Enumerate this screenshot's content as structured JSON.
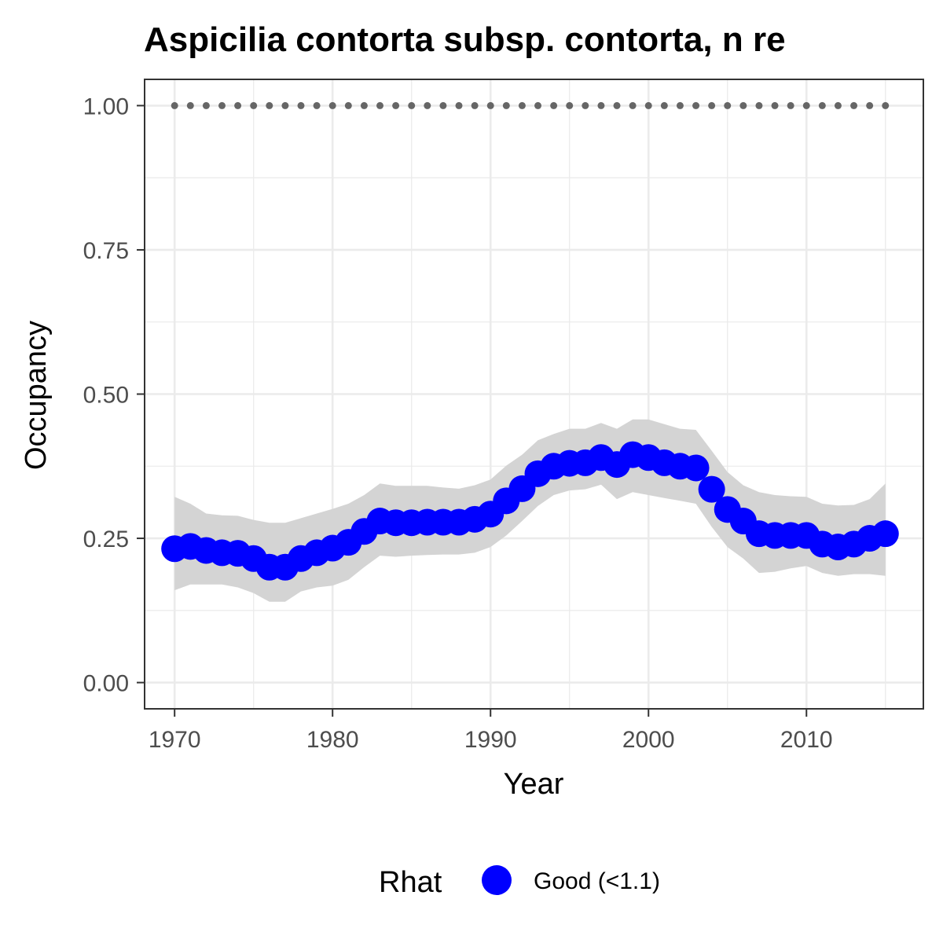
{
  "chart_data": {
    "type": "line",
    "title": "Aspicilia contorta subsp. contorta, n re",
    "xlabel": "Year",
    "ylabel": "Occupancy",
    "xlim": [
      1968.1,
      2017.4
    ],
    "ylim": [
      -0.0455,
      1.0455
    ],
    "x_ticks": [
      1970,
      1980,
      1990,
      2000,
      2010
    ],
    "x_tick_labels": [
      "1970",
      "1980",
      "1990",
      "2000",
      "2010"
    ],
    "y_ticks": [
      0,
      0.25,
      0.5,
      0.75,
      1
    ],
    "y_tick_labels": [
      "0.00",
      "0.25",
      "0.50",
      "0.75",
      "1.00"
    ],
    "grid": true,
    "legend": {
      "title": "Rhat",
      "position": "bottom",
      "entries": [
        {
          "label": "Good (<1.1)",
          "color": "#0000ff"
        }
      ]
    },
    "colors": {
      "points": "#0000ff",
      "ribbon": "#d4d4d4",
      "reference": "#666666"
    },
    "x": [
      1970,
      1971,
      1972,
      1973,
      1974,
      1975,
      1976,
      1977,
      1978,
      1979,
      1980,
      1981,
      1982,
      1983,
      1984,
      1985,
      1986,
      1987,
      1988,
      1989,
      1990,
      1991,
      1992,
      1993,
      1994,
      1995,
      1996,
      1997,
      1998,
      1999,
      2000,
      2001,
      2002,
      2003,
      2004,
      2005,
      2006,
      2007,
      2008,
      2009,
      2010,
      2011,
      2012,
      2013,
      2014,
      2015
    ],
    "series": [
      {
        "values": [
          0.232,
          0.236,
          0.229,
          0.225,
          0.224,
          0.215,
          0.2,
          0.2,
          0.215,
          0.225,
          0.233,
          0.243,
          0.262,
          0.28,
          0.277,
          0.277,
          0.278,
          0.278,
          0.278,
          0.283,
          0.292,
          0.315,
          0.336,
          0.362,
          0.375,
          0.38,
          0.381,
          0.39,
          0.378,
          0.395,
          0.39,
          0.381,
          0.375,
          0.372,
          0.335,
          0.3,
          0.28,
          0.258,
          0.255,
          0.255,
          0.255,
          0.24,
          0.235,
          0.24,
          0.25,
          0.258
        ],
        "lower": [
          0.16,
          0.17,
          0.17,
          0.17,
          0.165,
          0.155,
          0.14,
          0.14,
          0.158,
          0.165,
          0.168,
          0.178,
          0.2,
          0.22,
          0.218,
          0.22,
          0.221,
          0.222,
          0.222,
          0.225,
          0.235,
          0.255,
          0.28,
          0.306,
          0.325,
          0.333,
          0.335,
          0.343,
          0.318,
          0.33,
          0.325,
          0.32,
          0.315,
          0.31,
          0.27,
          0.235,
          0.215,
          0.19,
          0.192,
          0.198,
          0.202,
          0.19,
          0.185,
          0.188,
          0.188,
          0.185
        ]
      },
      {
        "values": [
          1,
          1,
          1,
          1,
          1,
          1,
          1,
          1,
          1,
          1,
          1,
          1,
          1,
          1,
          1,
          1,
          1,
          1,
          1,
          1,
          1,
          1,
          1,
          1,
          1,
          1,
          1,
          1,
          1,
          1,
          1,
          1,
          1,
          1,
          1,
          1,
          1,
          1,
          1,
          1,
          1,
          1,
          1,
          1,
          1,
          1
        ]
      }
    ],
    "ribbon_upper": [
      0.322,
      0.31,
      0.293,
      0.29,
      0.289,
      0.282,
      0.277,
      0.277,
      0.285,
      0.293,
      0.301,
      0.31,
      0.325,
      0.345,
      0.341,
      0.341,
      0.341,
      0.338,
      0.336,
      0.342,
      0.352,
      0.376,
      0.395,
      0.42,
      0.431,
      0.44,
      0.44,
      0.45,
      0.44,
      0.456,
      0.456,
      0.448,
      0.44,
      0.438,
      0.402,
      0.365,
      0.342,
      0.33,
      0.325,
      0.323,
      0.322,
      0.31,
      0.307,
      0.308,
      0.318,
      0.345
    ]
  }
}
